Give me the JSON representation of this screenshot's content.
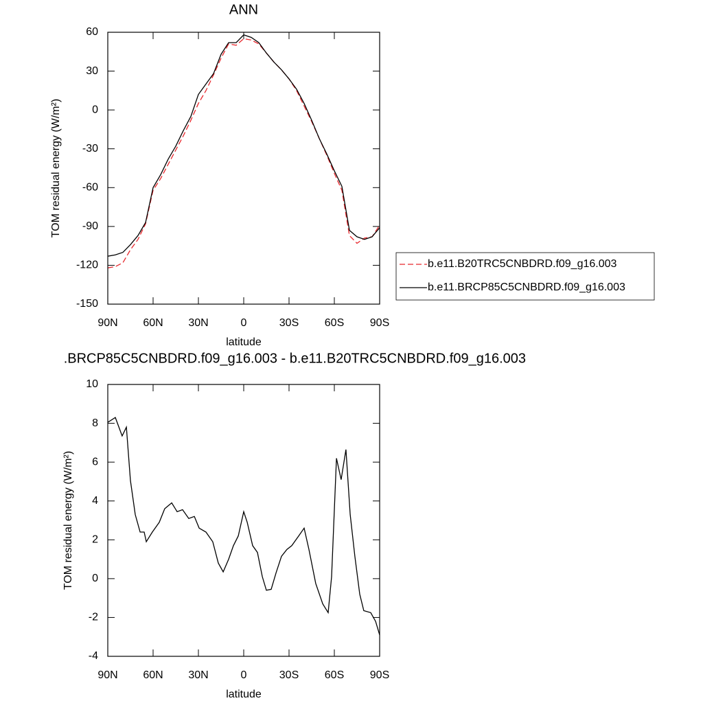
{
  "chart_data": [
    {
      "type": "line",
      "title": "ANN",
      "xlabel": "latitude",
      "ylabel": "TOM residual energy (W/m²)",
      "x": [
        90,
        85,
        80,
        75,
        70,
        65,
        60,
        55,
        50,
        45,
        40,
        35,
        30,
        25,
        20,
        15,
        10,
        5,
        0,
        -5,
        -10,
        -15,
        -20,
        -25,
        -30,
        -35,
        -40,
        -45,
        -50,
        -55,
        -60,
        -65,
        -70,
        -75,
        -80,
        -85,
        -90
      ],
      "xlim": [
        90,
        -90
      ],
      "xticks": [
        {
          "value": 90,
          "label": "90N"
        },
        {
          "value": 60,
          "label": "60N"
        },
        {
          "value": 30,
          "label": "30N"
        },
        0,
        {
          "value": -30,
          "label": "30S"
        },
        {
          "value": -60,
          "label": "60S"
        },
        {
          "value": -90,
          "label": "90S"
        }
      ],
      "ylim": [
        -150,
        60
      ],
      "yticks": [
        -150,
        -120,
        -90,
        -60,
        -30,
        0,
        30,
        60
      ],
      "series": [
        {
          "name": "b.e11.B20TRC5CNBDRD.f09_g16.003",
          "color": "#e8262b",
          "line_style": "dashed",
          "values": [
            -122,
            -121,
            -118,
            -108,
            -100,
            -88,
            -62,
            -53,
            -42,
            -31,
            -20,
            -8,
            5,
            15,
            27,
            40,
            51,
            50,
            55,
            54,
            51,
            44,
            37,
            31,
            24,
            15,
            3,
            -9,
            -22,
            -35,
            -49,
            -62,
            -97,
            -103,
            -99,
            -98,
            -89
          ]
        },
        {
          "name": "b.e11.BRCP85C5CNBDRD.f09_g16.003",
          "color": "#000000",
          "line_style": "solid",
          "values": [
            -113,
            -112,
            -110,
            -104,
            -97,
            -87,
            -60,
            -50,
            -38,
            -28,
            -16,
            -5,
            12,
            20,
            28,
            43,
            52,
            52,
            58,
            56,
            52,
            44,
            37,
            31,
            24,
            16,
            5,
            -8,
            -22,
            -34,
            -47,
            -59,
            -93,
            -98,
            -100,
            -98,
            -91
          ]
        }
      ]
    },
    {
      "type": "line",
      "title": ".BRCP85C5CNBDRD.f09_g16.003 - b.e11.B20TRC5CNBDRD.f09_g16.003",
      "xlabel": "latitude",
      "ylabel": "TOM residual energy (W/m²)",
      "x": [
        90,
        85,
        80.5,
        77.7,
        75,
        71.8,
        68.6,
        65.9,
        64.5,
        60.5,
        55.9,
        52.3,
        47.7,
        44.1,
        40.5,
        36.4,
        32.7,
        29.5,
        25,
        20.5,
        16.8,
        13.6,
        10,
        6.8,
        3.6,
        0,
        -2.3,
        -5.9,
        -9.1,
        -12.3,
        -15,
        -18.2,
        -21.4,
        -25,
        -28.6,
        -31.8,
        -36.4,
        -40,
        -43.2,
        -47.7,
        -52.3,
        -55.9,
        -58.2,
        -61.4,
        -64.5,
        -67.7,
        -70.5,
        -73.6,
        -76.8,
        -79.5,
        -84.1,
        -87.3,
        -90
      ],
      "xlim": [
        90,
        -90
      ],
      "xticks": [
        {
          "value": 90,
          "label": "90N"
        },
        {
          "value": 60,
          "label": "60N"
        },
        {
          "value": 30,
          "label": "30N"
        },
        0,
        {
          "value": -30,
          "label": "30S"
        },
        {
          "value": -60,
          "label": "60S"
        },
        {
          "value": -90,
          "label": "90S"
        }
      ],
      "ylim": [
        -4,
        10
      ],
      "yticks": [
        -4,
        -2,
        0,
        2,
        4,
        6,
        8,
        10
      ],
      "series": [
        {
          "color": "#000000",
          "line_style": "solid",
          "values": [
            8.05,
            8.3,
            7.35,
            7.8,
            5.05,
            3.3,
            2.4,
            2.4,
            1.9,
            2.4,
            2.9,
            3.6,
            3.9,
            3.45,
            3.55,
            3.1,
            3.2,
            2.6,
            2.4,
            1.9,
            0.8,
            0.35,
            1.0,
            1.7,
            2.2,
            3.45,
            2.9,
            1.7,
            1.35,
            0.1,
            -0.6,
            -0.55,
            0.3,
            1.15,
            1.5,
            1.7,
            2.2,
            2.6,
            1.5,
            -0.25,
            -1.3,
            -1.75,
            0.1,
            6.2,
            5.1,
            6.65,
            3.3,
            1.15,
            -0.8,
            -1.65,
            -1.75,
            -2.2,
            -2.9
          ]
        }
      ]
    }
  ]
}
